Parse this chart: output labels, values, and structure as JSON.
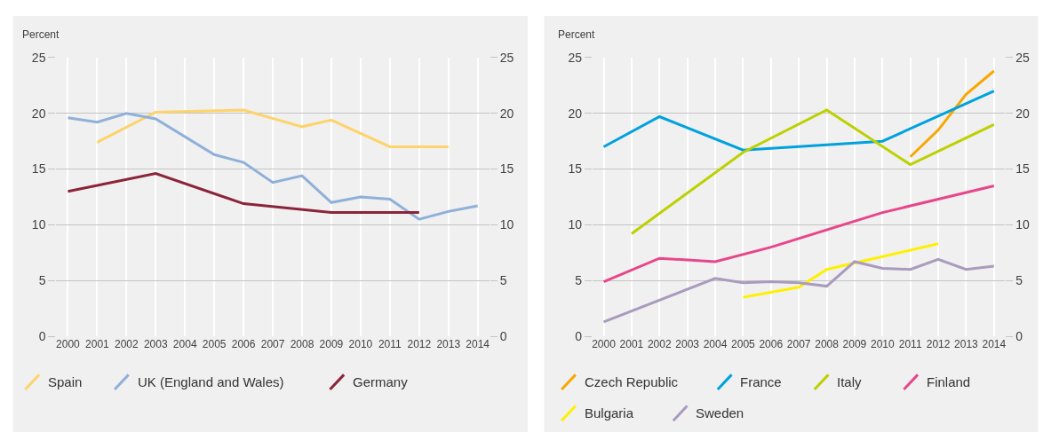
{
  "chart_data": [
    {
      "type": "line",
      "ylabel": "Percent",
      "xlim": [
        1999.6,
        2014.4
      ],
      "xticks": [
        2000,
        2001,
        2002,
        2003,
        2004,
        2005,
        2006,
        2007,
        2008,
        2009,
        2010,
        2011,
        2012,
        2013,
        2014
      ],
      "ylim": [
        0,
        25
      ],
      "yticks": [
        0,
        5,
        10,
        15,
        20,
        25
      ],
      "y2lim": [
        0,
        25
      ],
      "y2ticks": [
        0,
        5,
        10,
        15,
        20,
        25
      ],
      "grid": true,
      "legend": "bottom",
      "series": [
        {
          "name": "Spain",
          "color": "#fdd36b",
          "x": [
            2001,
            2003,
            2006,
            2008,
            2009,
            2011,
            2013
          ],
          "values": [
            17.4,
            20.1,
            20.3,
            18.8,
            19.4,
            17.0,
            17.0
          ]
        },
        {
          "name": "UK (England and Wales)",
          "color": "#8fb0d9",
          "x": [
            2000,
            2001,
            2002,
            2003,
            2005,
            2006,
            2007,
            2008,
            2009,
            2010,
            2011,
            2012,
            2013,
            2014
          ],
          "values": [
            19.6,
            19.2,
            20.0,
            19.5,
            16.3,
            15.6,
            13.8,
            14.4,
            12.0,
            12.5,
            12.3,
            10.5,
            11.2,
            11.7
          ]
        },
        {
          "name": "Germany",
          "color": "#8b2439",
          "x": [
            2000,
            2003,
            2006,
            2009,
            2012
          ],
          "values": [
            13.0,
            14.6,
            11.9,
            11.1,
            11.1
          ]
        }
      ]
    },
    {
      "type": "line",
      "ylabel": "Percent",
      "xlim": [
        1999.6,
        2014.4
      ],
      "xticks": [
        2000,
        2001,
        2002,
        2003,
        2004,
        2005,
        2006,
        2007,
        2008,
        2009,
        2010,
        2011,
        2012,
        2013,
        2014
      ],
      "ylim": [
        0,
        25
      ],
      "yticks": [
        0,
        5,
        10,
        15,
        20,
        25
      ],
      "y2lim": [
        0,
        25
      ],
      "y2ticks": [
        0,
        5,
        10,
        15,
        20,
        25
      ],
      "grid": true,
      "legend": "bottom",
      "series": [
        {
          "name": "Czech Republic",
          "color": "#f7a800",
          "x": [
            2011,
            2012,
            2013,
            2014
          ],
          "values": [
            16.1,
            18.5,
            21.7,
            23.8
          ]
        },
        {
          "name": "France",
          "color": "#00a2de",
          "x": [
            2000,
            2002,
            2005,
            2010,
            2014
          ],
          "values": [
            17.0,
            19.7,
            16.7,
            17.5,
            22.0
          ]
        },
        {
          "name": "Italy",
          "color": "#bdd000",
          "x": [
            2001,
            2005,
            2008,
            2011,
            2014
          ],
          "values": [
            9.2,
            16.5,
            20.3,
            15.4,
            19.0
          ]
        },
        {
          "name": "Finland",
          "color": "#e8468b",
          "x": [
            2000,
            2002,
            2004,
            2006,
            2010,
            2014
          ],
          "values": [
            4.9,
            7.0,
            6.7,
            8.0,
            11.1,
            13.5
          ]
        },
        {
          "name": "Bulgaria",
          "color": "#fff000",
          "x": [
            2005,
            2007,
            2008,
            2012
          ],
          "values": [
            3.5,
            4.4,
            6.0,
            8.3
          ]
        },
        {
          "name": "Sweden",
          "color": "#a99bbd",
          "x": [
            2000,
            2004,
            2005,
            2006,
            2007,
            2008,
            2009,
            2010,
            2011,
            2012,
            2013,
            2014
          ],
          "values": [
            1.3,
            5.2,
            4.8,
            4.9,
            4.8,
            4.5,
            6.7,
            6.1,
            6.0,
            6.9,
            6.0,
            6.3
          ]
        }
      ]
    }
  ]
}
